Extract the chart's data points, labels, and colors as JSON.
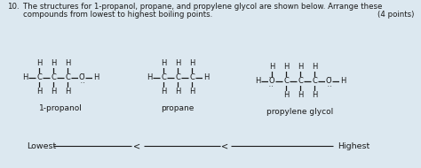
{
  "background_color": "#dce8f0",
  "title_number": "10.",
  "title_line1": "The structures for 1-propanol, propane, and propylene glycol are shown below. Arrange these",
  "title_line2": "compounds from lowest to highest boiling points.",
  "points_text": "(4 points)",
  "label_1propanol": "1-propanol",
  "label_propane": "propane",
  "label_propylene": "propylene glycol",
  "lowest_text": "Lowest",
  "highest_text": "Highest",
  "font_color": "#1a1a1a"
}
